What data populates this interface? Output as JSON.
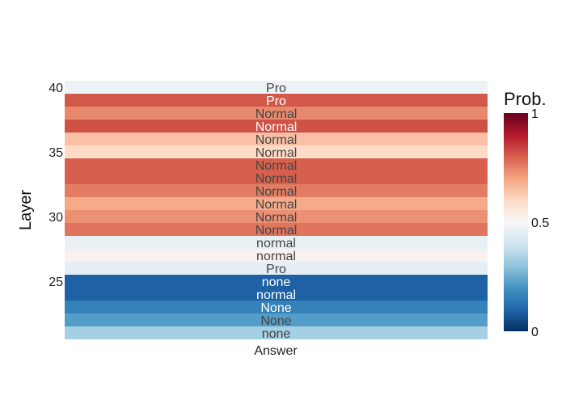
{
  "chart_data": {
    "type": "heatmap",
    "title": "",
    "xlabel": "",
    "ylabel": "Layer",
    "x_categories": [
      "Answer"
    ],
    "y_layers": [
      21,
      22,
      23,
      24,
      25,
      26,
      27,
      28,
      29,
      30,
      31,
      32,
      33,
      34,
      35,
      36,
      37,
      38,
      39,
      40
    ],
    "y_tick_values": [
      25,
      30,
      35,
      40
    ],
    "cells": [
      {
        "layer": 21,
        "label": "none",
        "prob": 0.33
      },
      {
        "layer": 22,
        "label": "None",
        "prob": 0.22
      },
      {
        "layer": 23,
        "label": "None",
        "prob": 0.16
      },
      {
        "layer": 24,
        "label": "normal",
        "prob": 0.09
      },
      {
        "layer": 25,
        "label": "none",
        "prob": 0.09
      },
      {
        "layer": 26,
        "label": "Pro",
        "prob": 0.45
      },
      {
        "layer": 27,
        "label": "normal",
        "prob": 0.52
      },
      {
        "layer": 28,
        "label": "normal",
        "prob": 0.46
      },
      {
        "layer": 29,
        "label": "Normal",
        "prob": 0.77
      },
      {
        "layer": 30,
        "label": "Normal",
        "prob": 0.73
      },
      {
        "layer": 31,
        "label": "Normal",
        "prob": 0.69
      },
      {
        "layer": 32,
        "label": "Normal",
        "prob": 0.76
      },
      {
        "layer": 33,
        "label": "Normal",
        "prob": 0.8
      },
      {
        "layer": 34,
        "label": "Normal",
        "prob": 0.8
      },
      {
        "layer": 35,
        "label": "Normal",
        "prob": 0.6
      },
      {
        "layer": 36,
        "label": "Normal",
        "prob": 0.65
      },
      {
        "layer": 37,
        "label": "Normal",
        "prob": 0.82
      },
      {
        "layer": 38,
        "label": "Normal",
        "prob": 0.74
      },
      {
        "layer": 39,
        "label": "Pro",
        "prob": 0.81
      },
      {
        "layer": 40,
        "label": "Pro",
        "prob": 0.47
      }
    ],
    "colorbar": {
      "title": "Prob.",
      "range": [
        0,
        1
      ],
      "ticks": [
        0,
        0.5,
        1
      ],
      "tick_labels": [
        "0",
        "0.5",
        "1"
      ],
      "colorscale": "RdBu-reversed"
    },
    "colors": {
      "scale": [
        "#053061",
        "#2166ac",
        "#4393c3",
        "#92c5de",
        "#d1e5f0",
        "#f7f7f7",
        "#fddbc7",
        "#f4a582",
        "#d6604d",
        "#b2182b",
        "#67001f"
      ],
      "label_dark": "#444444",
      "label_light": "#ffffff"
    },
    "grid": false,
    "legend": "colorbar-right"
  }
}
